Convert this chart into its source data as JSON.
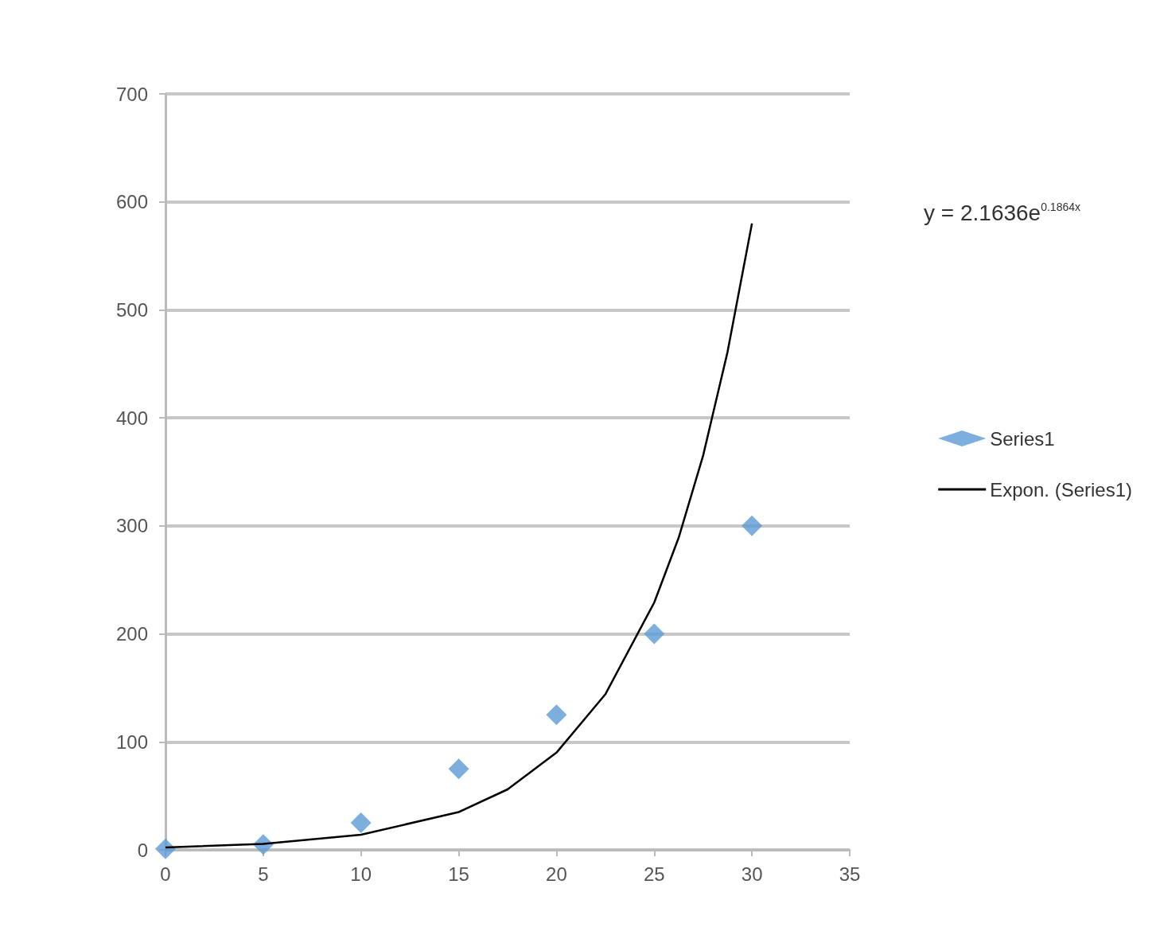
{
  "chart_data": {
    "type": "scatter",
    "series": [
      {
        "name": "Series1",
        "marker": "diamond",
        "color": "#5b9bd5",
        "x": [
          0,
          5,
          10,
          15,
          20,
          25,
          30
        ],
        "values": [
          1,
          5,
          25,
          75,
          125,
          200,
          300
        ]
      },
      {
        "name": "Expon. (Series1)",
        "type": "line",
        "color": "#000000",
        "x": [
          0,
          5,
          10,
          15,
          17.5,
          20,
          22.5,
          25,
          26.25,
          27.5,
          28.75,
          30
        ],
        "values": [
          2.2,
          5.5,
          14,
          35,
          56,
          90,
          144,
          229,
          289,
          365,
          461,
          580
        ]
      }
    ],
    "xlim": [
      0,
      35
    ],
    "xticks": [
      0,
      5,
      10,
      15,
      20,
      25,
      30,
      35
    ],
    "ylim": [
      0,
      700
    ],
    "yticks": [
      0,
      100,
      200,
      300,
      400,
      500,
      600,
      700
    ],
    "grid": "y",
    "legend": "right",
    "annotations": [
      "y = 2.1636e$^{0.1864x}$"
    ]
  }
}
